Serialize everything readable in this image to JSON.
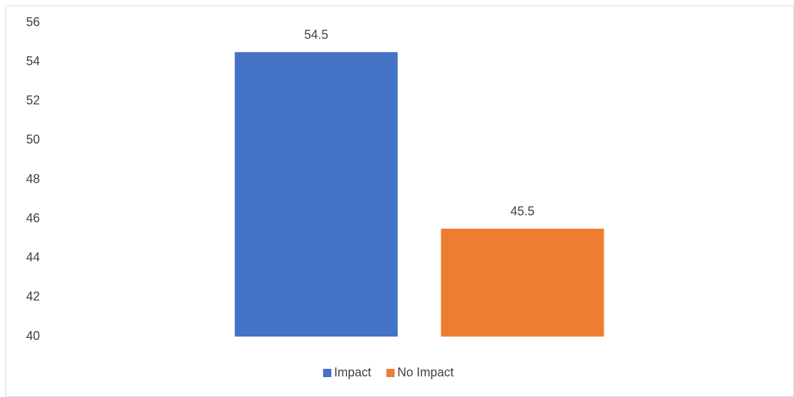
{
  "chart_data": {
    "type": "bar",
    "categories": [
      null
    ],
    "series": [
      {
        "name": "Impact",
        "color": "#4472c4",
        "values": [
          54.5
        ]
      },
      {
        "name": "No Impact",
        "color": "#ed7d31",
        "values": [
          45.5
        ]
      }
    ],
    "ylim": [
      40,
      56
    ],
    "yticks": [
      40,
      42,
      44,
      46,
      48,
      50,
      52,
      54,
      56
    ],
    "grid": false,
    "data_labels": true,
    "legend": "bottom"
  }
}
